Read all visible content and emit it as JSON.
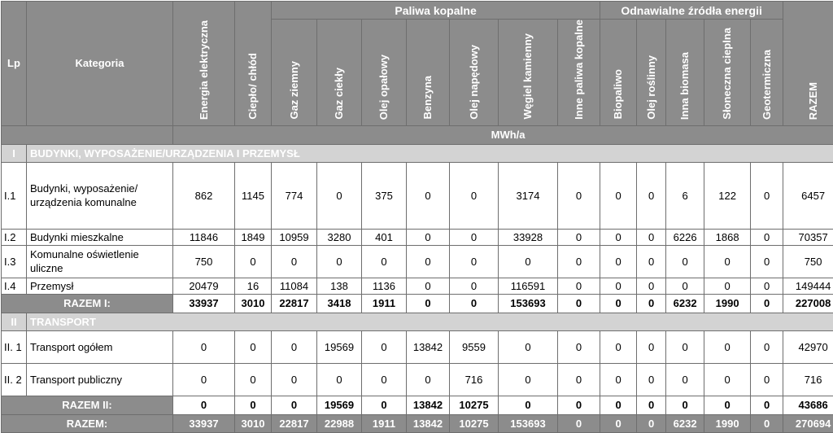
{
  "header": {
    "lp": "Lp",
    "kategoria": "Kategoria",
    "group_fossil": "Paliwa kopalne",
    "group_renewable": "Odnawialne źródła energii",
    "unit": "MWh/a",
    "columns": [
      "Energia elektryczna",
      "Ciepło/ chłód",
      "Gaz ziemny",
      "Gaz ciekły",
      "Olej opałowy",
      "Benzyna",
      "Olej napędowy",
      "Węgiel kamienny",
      "Inne paliwa kopalne",
      "Biopaliwo",
      "Olej roślinny",
      "Inna biomasa",
      "Słoneczna cieplna",
      "Geotermiczna",
      "RAZEM"
    ]
  },
  "sections": [
    {
      "num": "I",
      "title": "BUDYNKI, WYPOSAŻENIE/URZĄDZENIA I PRZEMYSŁ",
      "rows": [
        {
          "lp": "I.1",
          "cat": "Budynki, wyposażenie/ urządzenia komunalne",
          "values": [
            "862",
            "1145",
            "774",
            "0",
            "375",
            "0",
            "0",
            "3174",
            "0",
            "0",
            "0",
            "6",
            "122",
            "0",
            "6457"
          ]
        },
        {
          "lp": "I.2",
          "cat": "Budynki mieszkalne",
          "values": [
            "11846",
            "1849",
            "10959",
            "3280",
            "401",
            "0",
            "0",
            "33928",
            "0",
            "0",
            "0",
            "6226",
            "1868",
            "0",
            "70357"
          ]
        },
        {
          "lp": "I.3",
          "cat": "Komunalne oświetlenie uliczne",
          "values": [
            "750",
            "0",
            "0",
            "0",
            "0",
            "0",
            "0",
            "0",
            "0",
            "0",
            "0",
            "0",
            "0",
            "0",
            "750"
          ]
        },
        {
          "lp": "I.4",
          "cat": "Przemysł",
          "values": [
            "20479",
            "16",
            "11084",
            "138",
            "1136",
            "0",
            "0",
            "116591",
            "0",
            "0",
            "0",
            "0",
            "0",
            "0",
            "149444"
          ]
        }
      ],
      "sum_label": "RAZEM I:",
      "sum": [
        "33937",
        "3010",
        "22817",
        "3418",
        "1911",
        "0",
        "0",
        "153693",
        "0",
        "0",
        "0",
        "6232",
        "1990",
        "0",
        "227008"
      ]
    },
    {
      "num": "II",
      "title": "TRANSPORT",
      "rows": [
        {
          "lp": "II. 1",
          "cat": "Transport ogółem",
          "values": [
            "0",
            "0",
            "0",
            "19569",
            "0",
            "13842",
            "9559",
            "0",
            "0",
            "0",
            "0",
            "0",
            "0",
            "0",
            "42970"
          ]
        },
        {
          "lp": "II. 2",
          "cat": "Transport publiczny",
          "values": [
            "0",
            "0",
            "0",
            "0",
            "0",
            "0",
            "716",
            "0",
            "0",
            "0",
            "0",
            "0",
            "0",
            "0",
            "716"
          ]
        }
      ],
      "sum_label": "RAZEM II:",
      "sum": [
        "0",
        "0",
        "0",
        "19569",
        "0",
        "13842",
        "10275",
        "0",
        "0",
        "0",
        "0",
        "0",
        "0",
        "0",
        "43686"
      ]
    }
  ],
  "total": {
    "label": "RAZEM:",
    "values": [
      "33937",
      "3010",
      "22817",
      "22988",
      "1911",
      "13842",
      "10275",
      "153693",
      "0",
      "0",
      "0",
      "6232",
      "1990",
      "0",
      "270694"
    ]
  }
}
